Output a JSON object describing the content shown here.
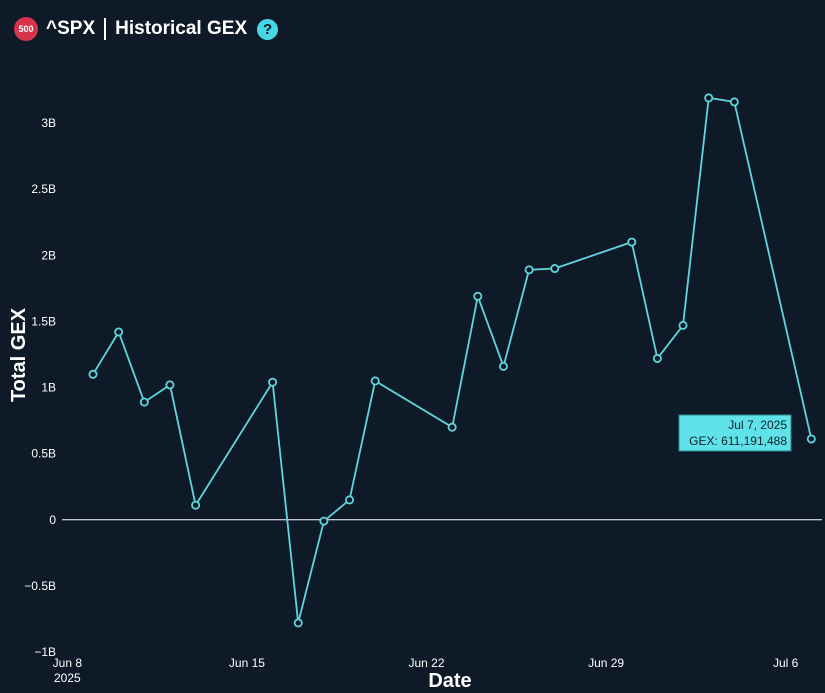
{
  "header": {
    "badge_text": "500",
    "ticker": "^SPX",
    "title": "Historical GEX",
    "help_symbol": "?"
  },
  "colors": {
    "background": "#0f1a28",
    "series": "#5fd6dc",
    "zero_line": "#ffffff",
    "badge": "#d6344a",
    "help": "#46d6e6",
    "tooltip_bg": "#5fe3e8"
  },
  "chart_data": {
    "type": "line",
    "title": "^SPX | Historical GEX",
    "xlabel": "Date",
    "ylabel": "Total GEX",
    "ylim": [
      -1000000000,
      3250000000
    ],
    "xlim": [
      "2025-06-07T19:00",
      "2025-07-07T10:00"
    ],
    "y_ticks": [
      -1000000000,
      -500000000,
      0,
      500000000,
      1000000000,
      1500000000,
      2000000000,
      2500000000,
      3000000000
    ],
    "y_tick_labels": [
      "−1B",
      "−0.5B",
      "0",
      "0.5B",
      "1B",
      "1.5B",
      "2B",
      "2.5B",
      "3B"
    ],
    "x_ticks": [
      "2025-06-08",
      "2025-06-15",
      "2025-06-22",
      "2025-06-29",
      "2025-07-06"
    ],
    "x_tick_labels": [
      "Jun 8",
      "Jun 15",
      "Jun 22",
      "Jun 29",
      "Jul 6"
    ],
    "x_tick_sublabel": "2025",
    "grid": false,
    "series": [
      {
        "x": [
          "2025-06-09",
          "2025-06-10",
          "2025-06-11",
          "2025-06-12",
          "2025-06-13",
          "2025-06-16",
          "2025-06-17",
          "2025-06-18",
          "2025-06-19",
          "2025-06-20",
          "2025-06-23",
          "2025-06-24",
          "2025-06-25",
          "2025-06-26",
          "2025-06-27",
          "2025-06-30",
          "2025-07-01",
          "2025-07-02",
          "2025-07-03",
          "2025-07-04",
          "2025-07-07"
        ],
        "values": [
          1100000000,
          1420000000,
          890000000,
          1020000000,
          110000000,
          1040000000,
          -780000000,
          -10000000,
          150000000,
          1050000000,
          700000000,
          1690000000,
          1160000000,
          1890000000,
          1900000000,
          2100000000,
          1220000000,
          1470000000,
          3190000000,
          3160000000,
          611191488
        ]
      }
    ],
    "hover": {
      "date_label": "Jul 7, 2025",
      "value_label": "GEX: 611,191,488"
    }
  }
}
